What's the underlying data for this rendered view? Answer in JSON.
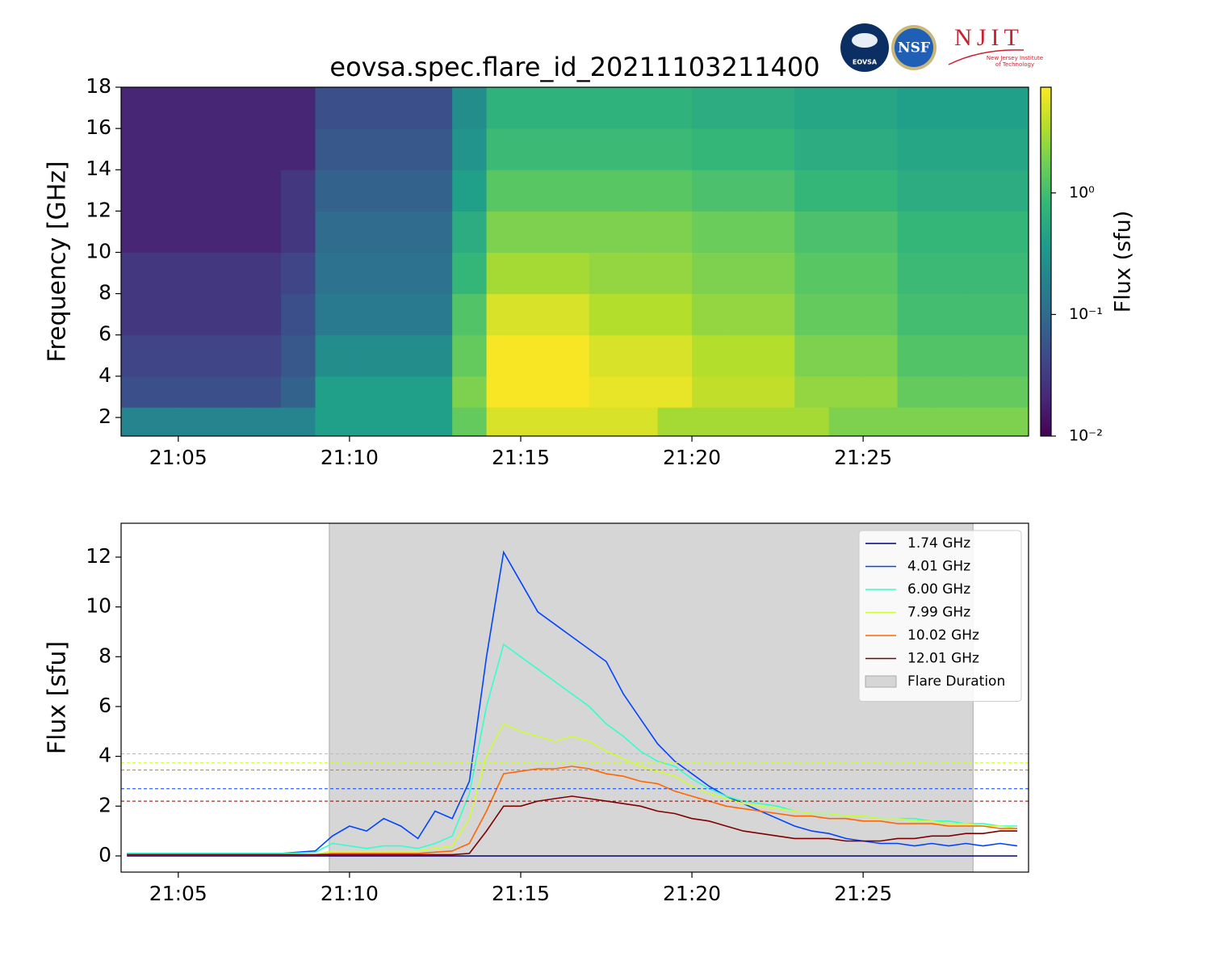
{
  "logos": {
    "eovsa": "EOVSA",
    "nsf": "NSF",
    "njit": "NJIT",
    "njit_sub": [
      "New Jersey Institute",
      "of Technology"
    ]
  },
  "chart_data": [
    {
      "type": "heatmap",
      "title": "eovsa.spec.flare_id_20211103211400",
      "y_label": "Frequency [GHz]",
      "x_bins": [
        1263,
        1264,
        1265,
        1266,
        1267,
        1268,
        1269,
        1270,
        1271,
        1272,
        1273,
        1274,
        1275,
        1276,
        1277,
        1278,
        1279,
        1280,
        1281,
        1282,
        1283,
        1284,
        1285,
        1286,
        1287,
        1288,
        1289,
        1290
      ],
      "y_bins": [
        1.1,
        2.5,
        4,
        6,
        8,
        10,
        12,
        14,
        16,
        18
      ],
      "z": [
        [
          0.2,
          0.2,
          0.2,
          0.2,
          0.2,
          0.2,
          0.4,
          0.4,
          0.4,
          0.4,
          1.5,
          5,
          5,
          5,
          5,
          5,
          3,
          3,
          3,
          3,
          3,
          2,
          2,
          2,
          2,
          2,
          2
        ],
        [
          0.05,
          0.05,
          0.05,
          0.05,
          0.05,
          0.08,
          0.4,
          0.4,
          0.4,
          0.4,
          2,
          7,
          7,
          7,
          6,
          6,
          6,
          4,
          4,
          4,
          2.5,
          2.5,
          2.5,
          1.5,
          1.5,
          1.5,
          1.5
        ],
        [
          0.04,
          0.04,
          0.04,
          0.04,
          0.04,
          0.06,
          0.25,
          0.25,
          0.25,
          0.25,
          1.5,
          7,
          7,
          7,
          5,
          5,
          5,
          3.5,
          3.5,
          3.5,
          2,
          2,
          2,
          1.2,
          1.2,
          1.2,
          1.2
        ],
        [
          0.03,
          0.03,
          0.03,
          0.03,
          0.03,
          0.05,
          0.15,
          0.15,
          0.15,
          0.15,
          1.2,
          5,
          5,
          5,
          3.5,
          3.5,
          3.5,
          2.5,
          2.5,
          2.5,
          1.5,
          1.5,
          1.5,
          1,
          1,
          1,
          1
        ],
        [
          0.03,
          0.03,
          0.03,
          0.03,
          0.03,
          0.04,
          0.12,
          0.12,
          0.12,
          0.12,
          0.8,
          3,
          3,
          3,
          2.5,
          2.5,
          2.5,
          2,
          2,
          2,
          1.3,
          1.3,
          1.3,
          0.9,
          0.9,
          0.9,
          0.9
        ],
        [
          0.02,
          0.02,
          0.02,
          0.02,
          0.02,
          0.03,
          0.1,
          0.1,
          0.1,
          0.1,
          0.6,
          2,
          2,
          2,
          2,
          2,
          2,
          1.6,
          1.6,
          1.6,
          1.1,
          1.1,
          1.1,
          0.8,
          0.8,
          0.8,
          0.8
        ],
        [
          0.02,
          0.02,
          0.02,
          0.02,
          0.02,
          0.03,
          0.08,
          0.08,
          0.08,
          0.08,
          0.4,
          1.3,
          1.3,
          1.3,
          1.3,
          1.3,
          1.3,
          1.1,
          1.1,
          1.1,
          0.8,
          0.8,
          0.8,
          0.6,
          0.6,
          0.6,
          0.6
        ],
        [
          0.02,
          0.02,
          0.02,
          0.02,
          0.02,
          0.02,
          0.06,
          0.06,
          0.06,
          0.06,
          0.3,
          0.9,
          0.9,
          0.9,
          0.9,
          0.9,
          0.9,
          0.8,
          0.8,
          0.8,
          0.6,
          0.6,
          0.6,
          0.5,
          0.5,
          0.5,
          0.5
        ],
        [
          0.02,
          0.02,
          0.02,
          0.02,
          0.02,
          0.02,
          0.05,
          0.05,
          0.05,
          0.05,
          0.25,
          0.7,
          0.7,
          0.7,
          0.7,
          0.7,
          0.7,
          0.6,
          0.6,
          0.6,
          0.5,
          0.5,
          0.5,
          0.4,
          0.4,
          0.4,
          0.4
        ]
      ],
      "xlim": [
        1263.33,
        1289.83
      ],
      "xticks": [
        {
          "value": 1265,
          "label": "21:05"
        },
        {
          "value": 1270,
          "label": "21:10"
        },
        {
          "value": 1275,
          "label": "21:15"
        },
        {
          "value": 1280,
          "label": "21:20"
        },
        {
          "value": 1285,
          "label": "21:25"
        }
      ],
      "ylim": [
        1.1,
        18
      ],
      "yticks": [
        2,
        4,
        6,
        8,
        10,
        12,
        14,
        16,
        18
      ],
      "colormap": [
        "#440154",
        "#482878",
        "#3e4989",
        "#31688e",
        "#26828e",
        "#1f9e89",
        "#35b779",
        "#6ece58",
        "#b5de2b",
        "#fde725"
      ],
      "color_scale": "log",
      "clim": [
        0.01,
        7.4
      ],
      "cticks": [
        {
          "value": 0.01,
          "label": "10⁻²"
        },
        {
          "value": 0.1,
          "label": "10⁻¹"
        },
        {
          "value": 1,
          "label": "10⁰"
        }
      ],
      "colorbar_label": "Flux  (sfu)"
    },
    {
      "type": "line",
      "y_label": "Flux [sfu]",
      "x": [
        1263.5,
        1264,
        1264.5,
        1265,
        1265.5,
        1266,
        1266.5,
        1267,
        1267.5,
        1268,
        1268.5,
        1269,
        1269.5,
        1270,
        1270.5,
        1271,
        1271.5,
        1272,
        1272.5,
        1273,
        1273.5,
        1274,
        1274.5,
        1275,
        1275.5,
        1276,
        1276.5,
        1277,
        1277.5,
        1278,
        1278.5,
        1279,
        1279.5,
        1280,
        1280.5,
        1281,
        1281.5,
        1282,
        1282.5,
        1283,
        1283.5,
        1284,
        1284.5,
        1285,
        1285.5,
        1286,
        1286.5,
        1287,
        1287.5,
        1288,
        1288.5,
        1289,
        1289.5
      ],
      "xlim": [
        1263.33,
        1289.83
      ],
      "xticks": [
        {
          "value": 1265,
          "label": "21:05"
        },
        {
          "value": 1270,
          "label": "21:10"
        },
        {
          "value": 1275,
          "label": "21:15"
        },
        {
          "value": 1280,
          "label": "21:20"
        },
        {
          "value": 1285,
          "label": "21:25"
        }
      ],
      "ylim": [
        -0.65,
        13.36
      ],
      "yticks": [
        0,
        2,
        4,
        6,
        8,
        10,
        12
      ],
      "span": {
        "name": "Flare Duration",
        "x0": 1269.41,
        "x1": 1288.21,
        "color": "#d6d6d6"
      },
      "legend": "upper right",
      "series": [
        {
          "name": "1.74 GHz",
          "color": "#00007f",
          "values": [
            0,
            0,
            0,
            0,
            0,
            0,
            0,
            0,
            0,
            0,
            0,
            0,
            0,
            0,
            0,
            0,
            0,
            0,
            0,
            0,
            0,
            0,
            0,
            0,
            0,
            0,
            0,
            0,
            0,
            0,
            0,
            0,
            0,
            0,
            0,
            0,
            0,
            0,
            0,
            0,
            0,
            0,
            0,
            0,
            0,
            0,
            0,
            0,
            0,
            0,
            0,
            0,
            0
          ]
        },
        {
          "name": "4.01 GHz",
          "color": "#0044ff",
          "threshold": 2.7,
          "values": [
            0.1,
            0.1,
            0.1,
            0.1,
            0.1,
            0.1,
            0.1,
            0.1,
            0.1,
            0.1,
            0.15,
            0.2,
            0.8,
            1.2,
            1.0,
            1.5,
            1.2,
            0.7,
            1.8,
            1.5,
            3.0,
            8,
            12.2,
            11,
            9.8,
            9.3,
            8.8,
            8.3,
            7.8,
            6.5,
            5.5,
            4.5,
            3.8,
            3.3,
            2.8,
            2.4,
            2.1,
            1.8,
            1.5,
            1.2,
            1.0,
            0.9,
            0.7,
            0.6,
            0.5,
            0.5,
            0.4,
            0.5,
            0.4,
            0.5,
            0.4,
            0.5,
            0.4
          ]
        },
        {
          "name": "6.00 GHz",
          "color": "#33ffcc",
          "threshold": 4.1,
          "values": [
            0.1,
            0.1,
            0.1,
            0.1,
            0.1,
            0.1,
            0.1,
            0.1,
            0.1,
            0.1,
            0.12,
            0.15,
            0.5,
            0.4,
            0.3,
            0.4,
            0.4,
            0.3,
            0.5,
            0.8,
            2.5,
            6,
            8.5,
            8,
            7.5,
            7,
            6.5,
            6,
            5.3,
            4.8,
            4.2,
            3.8,
            3.6,
            3.1,
            2.7,
            2.4,
            2.2,
            2.1,
            2.0,
            1.8,
            1.7,
            1.7,
            1.6,
            1.6,
            1.5,
            1.5,
            1.5,
            1.4,
            1.4,
            1.3,
            1.3,
            1.2,
            1.2
          ]
        },
        {
          "name": "7.99 GHz",
          "color": "#ccff33",
          "threshold": 3.75,
          "values": [
            0.05,
            0.05,
            0.05,
            0.05,
            0.05,
            0.05,
            0.05,
            0.05,
            0.05,
            0.05,
            0.05,
            0.05,
            0.2,
            0.2,
            0.2,
            0.2,
            0.2,
            0.2,
            0.3,
            0.4,
            1.5,
            4,
            5.3,
            5,
            4.8,
            4.6,
            4.8,
            4.6,
            4.2,
            3.9,
            3.6,
            3.4,
            3.2,
            2.8,
            2.5,
            2.3,
            2.1,
            2.0,
            1.9,
            1.8,
            1.7,
            1.7,
            1.6,
            1.6,
            1.5,
            1.5,
            1.4,
            1.4,
            1.3,
            1.3,
            1.2,
            1.2,
            1.1
          ]
        },
        {
          "name": "10.02 GHz",
          "color": "#ff6600",
          "threshold": 3.45,
          "values": [
            0.05,
            0.05,
            0.05,
            0.05,
            0.05,
            0.05,
            0.05,
            0.05,
            0.05,
            0.05,
            0.05,
            0.05,
            0.1,
            0.1,
            0.1,
            0.1,
            0.1,
            0.1,
            0.15,
            0.2,
            0.5,
            1.8,
            3.3,
            3.4,
            3.5,
            3.5,
            3.6,
            3.5,
            3.3,
            3.2,
            3.0,
            2.9,
            2.6,
            2.4,
            2.2,
            2.0,
            1.9,
            1.8,
            1.7,
            1.6,
            1.6,
            1.5,
            1.5,
            1.4,
            1.4,
            1.3,
            1.3,
            1.3,
            1.2,
            1.2,
            1.2,
            1.1,
            1.1
          ]
        },
        {
          "name": "12.01 GHz",
          "color": "#800000",
          "threshold": 2.2,
          "values": [
            0.05,
            0.05,
            0.05,
            0.05,
            0.05,
            0.05,
            0.05,
            0.05,
            0.05,
            0.05,
            0.05,
            0.05,
            0.05,
            0.05,
            0.05,
            0.05,
            0.05,
            0.05,
            0.05,
            0.05,
            0.1,
            1.0,
            2.0,
            2.0,
            2.2,
            2.3,
            2.4,
            2.3,
            2.2,
            2.1,
            2.0,
            1.8,
            1.7,
            1.5,
            1.4,
            1.2,
            1.0,
            0.9,
            0.8,
            0.7,
            0.7,
            0.7,
            0.6,
            0.6,
            0.6,
            0.7,
            0.7,
            0.8,
            0.8,
            0.9,
            0.9,
            1.0,
            1.0
          ]
        }
      ]
    }
  ]
}
